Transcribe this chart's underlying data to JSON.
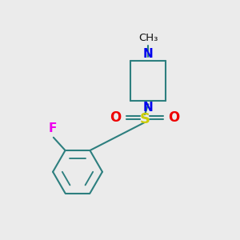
{
  "background_color": "#ebebeb",
  "bond_color": "#2d7f7f",
  "N_color": "#0000ee",
  "O_color": "#ee0000",
  "S_color": "#cccc00",
  "F_color": "#ee00ee",
  "line_width": 1.5,
  "figsize": [
    3.0,
    3.0
  ],
  "dpi": 100,
  "xlim": [
    0,
    10
  ],
  "ylim": [
    0,
    10
  ]
}
